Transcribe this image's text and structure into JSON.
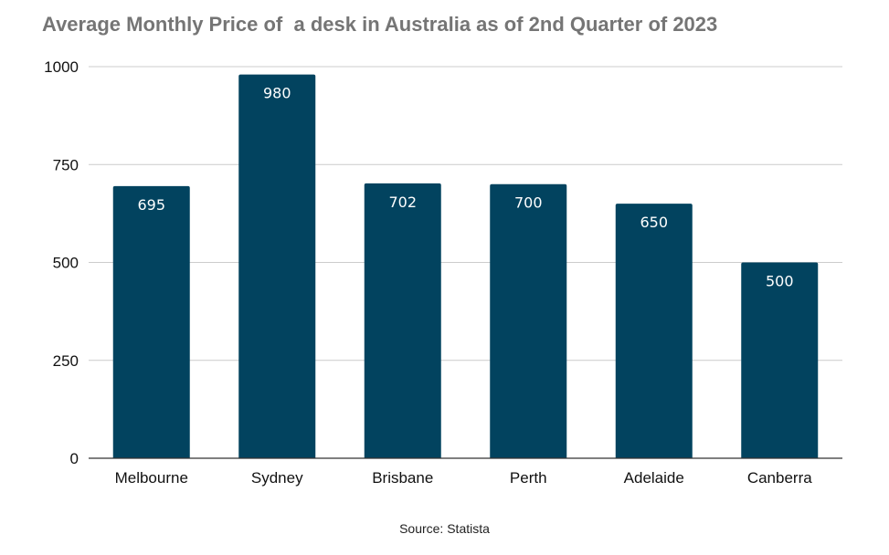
{
  "chart_data": {
    "type": "bar",
    "title": "Average Monthly Price of  a desk in Australia as of 2nd Quarter of 2023",
    "categories": [
      "Melbourne",
      "Sydney",
      "Brisbane",
      "Perth",
      "Adelaide",
      "Canberra"
    ],
    "values": [
      695,
      980,
      702,
      700,
      650,
      500
    ],
    "data_labels": [
      "695",
      "980",
      "702",
      "700",
      "650",
      "500"
    ],
    "yticks": [
      0,
      250,
      500,
      750,
      1000
    ],
    "ytick_labels": [
      "0",
      "250",
      "500",
      "750",
      "1000"
    ],
    "ylim": [
      0,
      1000
    ],
    "xlabel": "",
    "ylabel": "",
    "grid": true,
    "legend": "none",
    "bar_color": "#02435f",
    "source": "Source: Statista"
  }
}
